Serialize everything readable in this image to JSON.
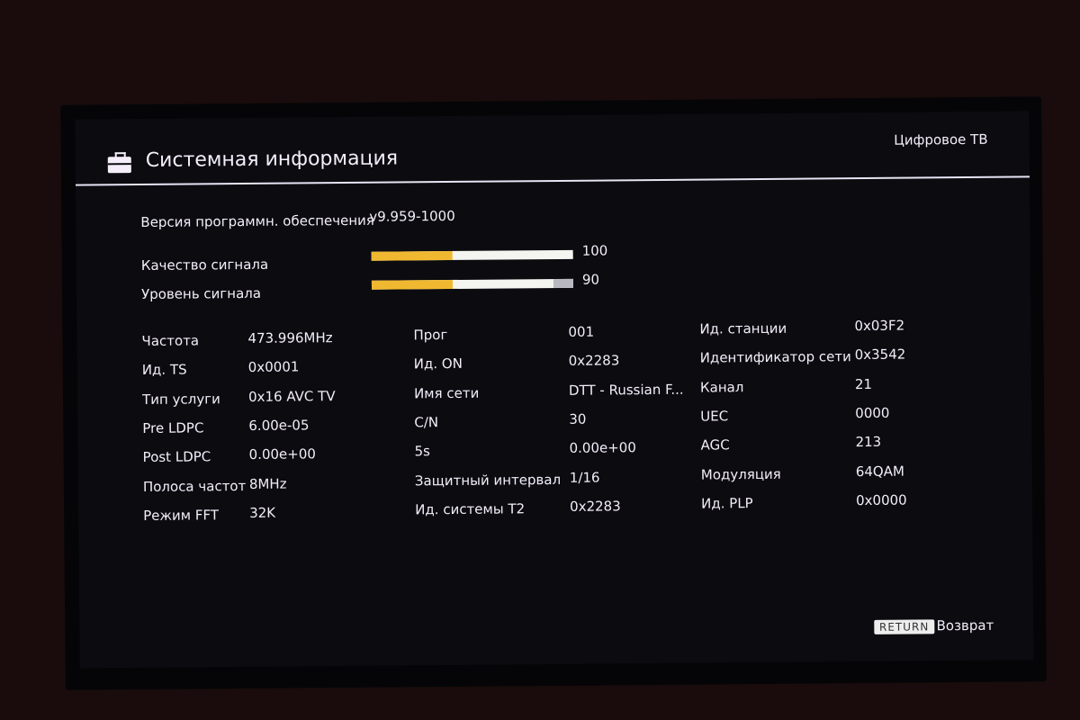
{
  "header": {
    "title": "Системная информация",
    "source": "Цифровое ТВ",
    "icon": "toolbox-icon"
  },
  "software": {
    "label": "Версия программн. обеспечения",
    "value": "v9.959-1000"
  },
  "signal": [
    {
      "label": "Качество сигнала",
      "value": "100",
      "level": 100
    },
    {
      "label": "Уровень сигнала",
      "value": "90",
      "level": 90
    }
  ],
  "columns": [
    [
      {
        "label": "Частота",
        "value": "473.996MHz"
      },
      {
        "label": "Ид. TS",
        "value": "0x0001"
      },
      {
        "label": "Тип услуги",
        "value": "0x16 AVC TV"
      },
      {
        "label": "Pre LDPC",
        "value": "6.00e-05"
      },
      {
        "label": "Post LDPC",
        "value": "0.00e+00"
      },
      {
        "label": "Полоса частот",
        "value": "8MHz"
      },
      {
        "label": "Режим FFT",
        "value": "32K"
      }
    ],
    [
      {
        "label": "Прог",
        "value": "001"
      },
      {
        "label": "Ид. ON",
        "value": "0x2283"
      },
      {
        "label": "Имя сети",
        "value": "DTT - Russian F..."
      },
      {
        "label": "C/N",
        "value": "30"
      },
      {
        "label": "5s",
        "value": "0.00e+00"
      },
      {
        "label": "Защитный интервал",
        "value": "1/16"
      },
      {
        "label": "Ид. системы T2",
        "value": "0x2283"
      }
    ],
    [
      {
        "label": "Ид. станции",
        "value": "0x03F2"
      },
      {
        "label": "Идентификатор сети",
        "value": "0x3542"
      },
      {
        "label": "Канал",
        "value": "21"
      },
      {
        "label": "UEC",
        "value": "0000"
      },
      {
        "label": "AGC",
        "value": "213"
      },
      {
        "label": "Модуляция",
        "value": "64QAM"
      },
      {
        "label": "Ид. PLP",
        "value": "0x0000"
      }
    ]
  ],
  "footer": {
    "key": "RETURN",
    "label": "Возврат"
  }
}
